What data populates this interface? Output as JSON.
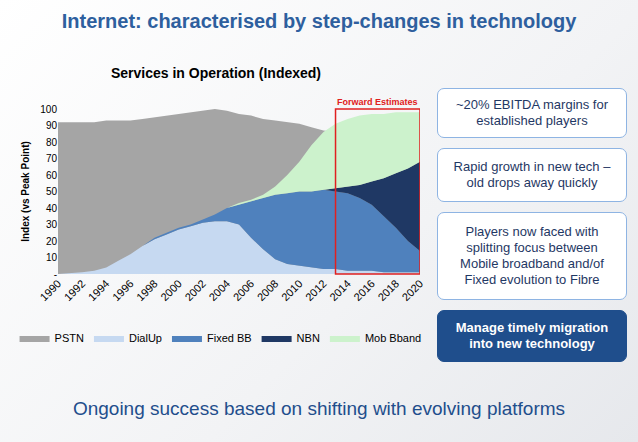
{
  "page": {
    "title": "Internet: characterised by step-changes in technology",
    "footer": "Ongoing success based on shifting with evolving platforms",
    "callouts": [
      "~20% EBITDA margins for established players",
      "Rapid growth in new tech – old drops away quickly",
      "Players now faced with splitting focus between Mobile broadband and/of Fixed evolution to Fibre",
      "Manage timely migration into new technology"
    ]
  },
  "chart_data": {
    "type": "area",
    "title": "Services in Operation (Indexed)",
    "y_label": "Index (vs Peak Point)",
    "x": [
      1990,
      1991,
      1992,
      1993,
      1994,
      1995,
      1996,
      1997,
      1998,
      1999,
      2000,
      2001,
      2002,
      2003,
      2004,
      2005,
      2006,
      2007,
      2008,
      2009,
      2010,
      2011,
      2012,
      2013,
      2014,
      2015,
      2016,
      2017,
      2018,
      2019,
      2020
    ],
    "xlim": [
      1990,
      2020
    ],
    "xticks": [
      1990,
      1992,
      1994,
      1996,
      1998,
      2000,
      2002,
      2004,
      2006,
      2008,
      2010,
      2012,
      2014,
      2016,
      2018,
      2020
    ],
    "ylim": [
      0,
      100
    ],
    "yticks": [
      {
        "value": 0,
        "label": "-"
      },
      10,
      20,
      30,
      40,
      50,
      60,
      70,
      80,
      90,
      100
    ],
    "grid": false,
    "legend": "bottom",
    "annotations": [
      {
        "text": "Forward Estimates",
        "x": [
          2013,
          2020
        ]
      }
    ],
    "series": [
      {
        "name": "PSTN",
        "color": "#a5a5a5",
        "stacked": false,
        "values": [
          92,
          92,
          92,
          92,
          93,
          93,
          93,
          94,
          95,
          96,
          97,
          98,
          99,
          100,
          99,
          97,
          96,
          94,
          93,
          92,
          91,
          89,
          87,
          86,
          84,
          82,
          80,
          78,
          76,
          74,
          72
        ]
      },
      {
        "name": "DialUp",
        "color": "#c6d9f1",
        "stacked": true,
        "values": [
          0,
          0.5,
          1,
          2,
          4,
          8,
          12,
          17,
          21,
          24,
          27,
          29,
          31,
          32,
          32,
          30,
          22,
          15,
          9,
          6,
          5,
          4,
          3,
          3,
          2,
          2,
          2,
          1,
          1,
          1,
          1
        ]
      },
      {
        "name": "Fixed BB",
        "color": "#4f81bd",
        "stacked": true,
        "values": [
          0,
          0,
          0,
          0,
          0,
          0,
          0,
          0,
          1,
          1,
          1,
          1,
          2,
          4,
          8,
          12,
          22,
          31,
          39,
          43,
          45,
          46,
          48,
          47,
          47,
          44,
          40,
          34,
          27,
          19,
          13
        ]
      },
      {
        "name": "NBN",
        "color": "#1f3864",
        "stacked": true,
        "values": [
          0,
          0,
          0,
          0,
          0,
          0,
          0,
          0,
          0,
          0,
          0,
          0,
          0,
          0,
          0,
          0,
          0,
          0,
          0,
          0,
          0,
          0,
          0,
          2,
          4,
          8,
          14,
          23,
          33,
          44,
          54
        ]
      },
      {
        "name": "Mob Bband",
        "color": "#ccf2cc",
        "stacked": true,
        "values": [
          0,
          0,
          0,
          0,
          0,
          0,
          0,
          0,
          0,
          0,
          0,
          0,
          0,
          0,
          0,
          1,
          1,
          2,
          5,
          11,
          18,
          28,
          35,
          39,
          41,
          42,
          41,
          39,
          37,
          34,
          30
        ]
      }
    ]
  }
}
